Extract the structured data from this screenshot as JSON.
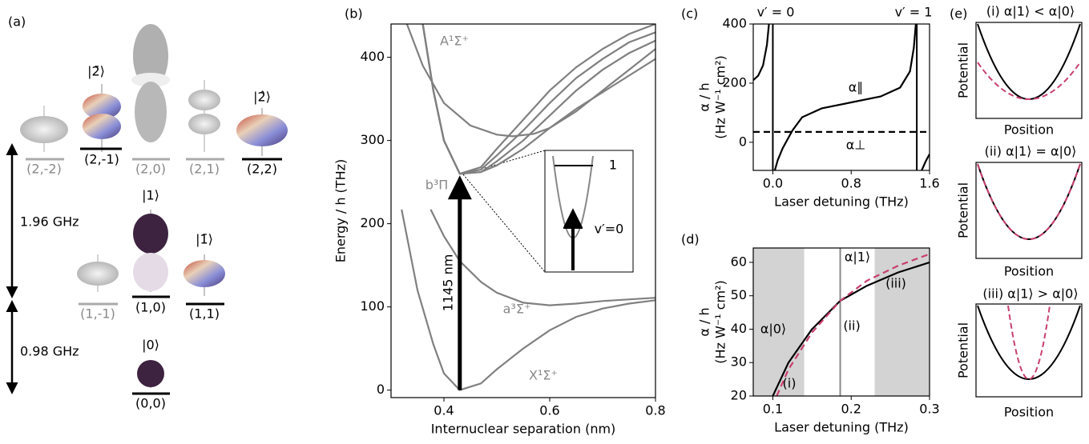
{
  "panel_a": {
    "label": "(a)",
    "states": [
      "(2,-2)",
      "(2,-1)",
      "(2,0)",
      "(2,1)",
      "(2,2)",
      "(1,-1)",
      "(1,0)",
      "(1,1)",
      "(0,0)"
    ],
    "kets": [
      "|2̄⟩",
      "|2̂⟩",
      "|1⟩",
      "|1̄⟩",
      "|0⟩"
    ],
    "spacings": [
      "1.96 GHz",
      "0.98 GHz"
    ]
  },
  "chart_data": [
    {
      "type": "line",
      "label": "(b)",
      "xlabel": "Internuclear separation (nm)",
      "ylabel": "Energy / h (THz)",
      "xlim": [
        0.3,
        0.8
      ],
      "ylim": [
        -9,
        440
      ],
      "xticks": [
        0.4,
        0.6,
        0.8
      ],
      "yticks": [
        0,
        100,
        200,
        300,
        400
      ],
      "series": [
        {
          "color": "#808080",
          "x": [
            0.32,
            0.35,
            0.38,
            0.4,
            0.43,
            0.47,
            0.5,
            0.55,
            0.6,
            0.65,
            0.7,
            0.75,
            0.8
          ],
          "values": [
            217,
            120,
            55,
            20,
            0,
            8,
            25,
            50,
            72,
            88,
            98,
            104,
            108
          ]
        },
        {
          "color": "#808080",
          "x": [
            0.375,
            0.4,
            0.43,
            0.47,
            0.5,
            0.55,
            0.6,
            0.65,
            0.7,
            0.8
          ],
          "values": [
            217,
            185,
            155,
            130,
            117,
            105,
            102,
            104,
            107,
            111
          ]
        },
        {
          "color": "#808080",
          "x": [
            0.36,
            0.38,
            0.4,
            0.43,
            0.47,
            0.5,
            0.55,
            0.6,
            0.65,
            0.7,
            0.75,
            0.8
          ],
          "values": [
            440,
            360,
            300,
            260,
            262,
            275,
            300,
            330,
            360,
            385,
            405,
            420
          ]
        },
        {
          "color": "#808080",
          "x": [
            0.36,
            0.38,
            0.4,
            0.43,
            0.47,
            0.5,
            0.55,
            0.6,
            0.65,
            0.7,
            0.75,
            0.8
          ],
          "values": [
            440,
            360,
            300,
            260,
            265,
            282,
            312,
            345,
            375,
            398,
            418,
            430
          ]
        },
        {
          "color": "#808080",
          "x": [
            0.36,
            0.38,
            0.4,
            0.43,
            0.47,
            0.5,
            0.55,
            0.6,
            0.65,
            0.7,
            0.75,
            0.8
          ],
          "values": [
            440,
            360,
            300,
            260,
            268,
            290,
            325,
            360,
            388,
            410,
            428,
            440
          ]
        },
        {
          "color": "#808080",
          "x": [
            0.36,
            0.38,
            0.4,
            0.43,
            0.47,
            0.5,
            0.55,
            0.6,
            0.65,
            0.7,
            0.75,
            0.8
          ],
          "values": [
            440,
            360,
            300,
            260,
            262,
            270,
            290,
            315,
            338,
            358,
            378,
            398
          ]
        },
        {
          "color": "#808080",
          "x": [
            0.33,
            0.36,
            0.4,
            0.45,
            0.5,
            0.53,
            0.57,
            0.6,
            0.65,
            0.7,
            0.75,
            0.8
          ],
          "values": [
            440,
            390,
            345,
            318,
            307,
            305,
            308,
            315,
            335,
            360,
            385,
            410
          ]
        }
      ],
      "transition": {
        "x": 0.43,
        "from": 0,
        "to": 258,
        "label": "1145 nm"
      },
      "annotations": [
        "A¹Σ⁺",
        "b³Π",
        "a³Σ⁺",
        "X¹Σ⁺"
      ],
      "inset": {
        "labels": [
          "1",
          "v′=0"
        ]
      }
    },
    {
      "type": "line",
      "label": "(c)",
      "xlabel": "Laser detuning (THz)",
      "ylabel": [
        "α / h",
        "(Hz W⁻¹ cm²)"
      ],
      "xlim": [
        -0.2,
        1.6
      ],
      "ylim": [
        -95,
        400
      ],
      "xticks": [
        {
          "value": 0,
          "label": "0.0"
        },
        0.8,
        1.6
      ],
      "yticks": [
        0,
        200,
        400
      ],
      "series": [
        {
          "color": "#000000",
          "x": [
            -0.2,
            -0.15,
            -0.1,
            -0.06,
            -0.04,
            0,
            0.02,
            0.05,
            0.1,
            0.15,
            0.2,
            0.3,
            0.5,
            0.8,
            1.1,
            1.3,
            1.4,
            1.44,
            1.46,
            1.47,
            1.52,
            1.56,
            1.6
          ],
          "values": [
            210,
            225,
            260,
            330,
            400,
            null,
            -95,
            -60,
            -20,
            10,
            40,
            85,
            115,
            135,
            155,
            185,
            240,
            320,
            400,
            null,
            -95,
            -65,
            -40
          ]
        },
        {
          "color": "#000000",
          "dashed": true,
          "x": [
            -0.2,
            1.6
          ],
          "values": [
            35,
            35
          ]
        }
      ],
      "vlines": [
        0,
        1.47
      ],
      "vline_color": "#000000",
      "annotations": [
        "v′ = 0",
        "v′ = 1",
        "α∥",
        "α⊥"
      ]
    },
    {
      "type": "line",
      "label": "(d)",
      "xlabel": "Laser detuning (THz)",
      "ylabel": [
        "α / h",
        "(Hz W⁻¹ cm²)"
      ],
      "xlim": [
        0.075,
        0.3
      ],
      "ylim": [
        20,
        64.3
      ],
      "xticks": [
        0.1,
        0.2,
        0.3
      ],
      "yticks": [
        20,
        30,
        40,
        50,
        60
      ],
      "shaded": [
        [
          0.075,
          0.14
        ],
        [
          0.23,
          0.3
        ]
      ],
      "series": [
        {
          "color": "#000000",
          "x": [
            0.1,
            0.12,
            0.15,
            0.186,
            0.22,
            0.26,
            0.3
          ],
          "values": [
            20,
            30,
            40,
            48.5,
            53,
            57,
            60
          ]
        },
        {
          "color": "#c8406e",
          "dashed": true,
          "x": [
            0.105,
            0.12,
            0.15,
            0.186,
            0.22,
            0.26,
            0.3
          ],
          "values": [
            20,
            28,
            39,
            48.5,
            54.5,
            59,
            62.5
          ]
        }
      ],
      "vlines": [
        0.186
      ],
      "vline_color": "#888888",
      "annotations": [
        "α|0⟩",
        "α|1⟩",
        "(i)",
        "(ii)",
        "(iii)"
      ]
    }
  ],
  "panel_e": {
    "label": "(e)",
    "titles": [
      "(i) α|1⟩ < α|0⟩",
      "(ii) α|1⟩ = α|0⟩",
      "(iii) α|1⟩ > α|0⟩"
    ],
    "ylabel": "Potential",
    "xlabel": "Position"
  }
}
